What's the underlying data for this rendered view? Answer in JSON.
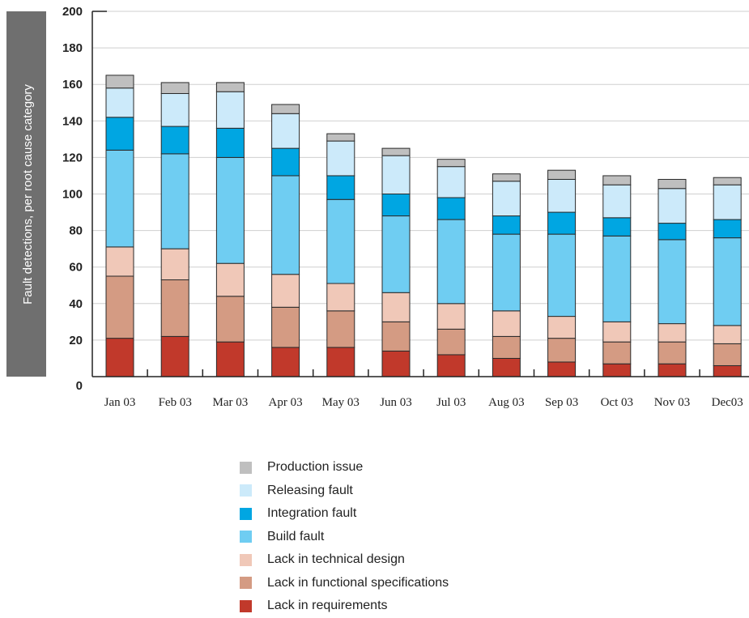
{
  "chart_data": {
    "type": "bar",
    "stacked": true,
    "title": "",
    "xlabel": "",
    "ylabel": "Fault detections, per root cause category",
    "ylim": [
      0,
      200
    ],
    "yticks": [
      0,
      20,
      40,
      60,
      80,
      100,
      120,
      140,
      160,
      180,
      200
    ],
    "grid": true,
    "legend_position": "bottom",
    "categories": [
      "Jan 03",
      "Feb 03",
      "Mar 03",
      "Apr 03",
      "May 03",
      "Jun 03",
      "Jul 03",
      "Aug 03",
      "Sep 03",
      "Oct 03",
      "Nov 03",
      "Dec03"
    ],
    "series": [
      {
        "name": "Lack in requirements",
        "color": "#c1392b",
        "values": [
          21,
          22,
          19,
          16,
          16,
          14,
          12,
          10,
          8,
          7,
          7,
          6
        ]
      },
      {
        "name": "Lack in functional specifications",
        "color": "#d49b83",
        "values": [
          34,
          31,
          25,
          22,
          20,
          16,
          14,
          12,
          13,
          12,
          12,
          12
        ]
      },
      {
        "name": "Lack in technical design",
        "color": "#f0c8b8",
        "values": [
          16,
          17,
          18,
          18,
          15,
          16,
          14,
          14,
          12,
          11,
          10,
          10
        ]
      },
      {
        "name": "Build fault",
        "color": "#6fcdf2",
        "values": [
          53,
          52,
          58,
          54,
          46,
          42,
          46,
          42,
          45,
          47,
          46,
          48
        ]
      },
      {
        "name": "Integration fault",
        "color": "#00a6e2",
        "values": [
          18,
          15,
          16,
          15,
          13,
          12,
          12,
          10,
          12,
          10,
          9,
          10
        ]
      },
      {
        "name": "Releasing fault",
        "color": "#cceafa",
        "values": [
          16,
          18,
          20,
          19,
          19,
          21,
          17,
          19,
          18,
          18,
          19,
          19
        ]
      },
      {
        "name": "Production issue",
        "color": "#bfbfbf",
        "values": [
          7,
          6,
          5,
          5,
          4,
          4,
          4,
          4,
          5,
          5,
          5,
          4
        ]
      }
    ],
    "legend_order": [
      "Production issue",
      "Releasing fault",
      "Integration fault",
      "Build fault",
      "Lack in technical design",
      "Lack in functional specifications",
      "Lack in requirements"
    ]
  }
}
